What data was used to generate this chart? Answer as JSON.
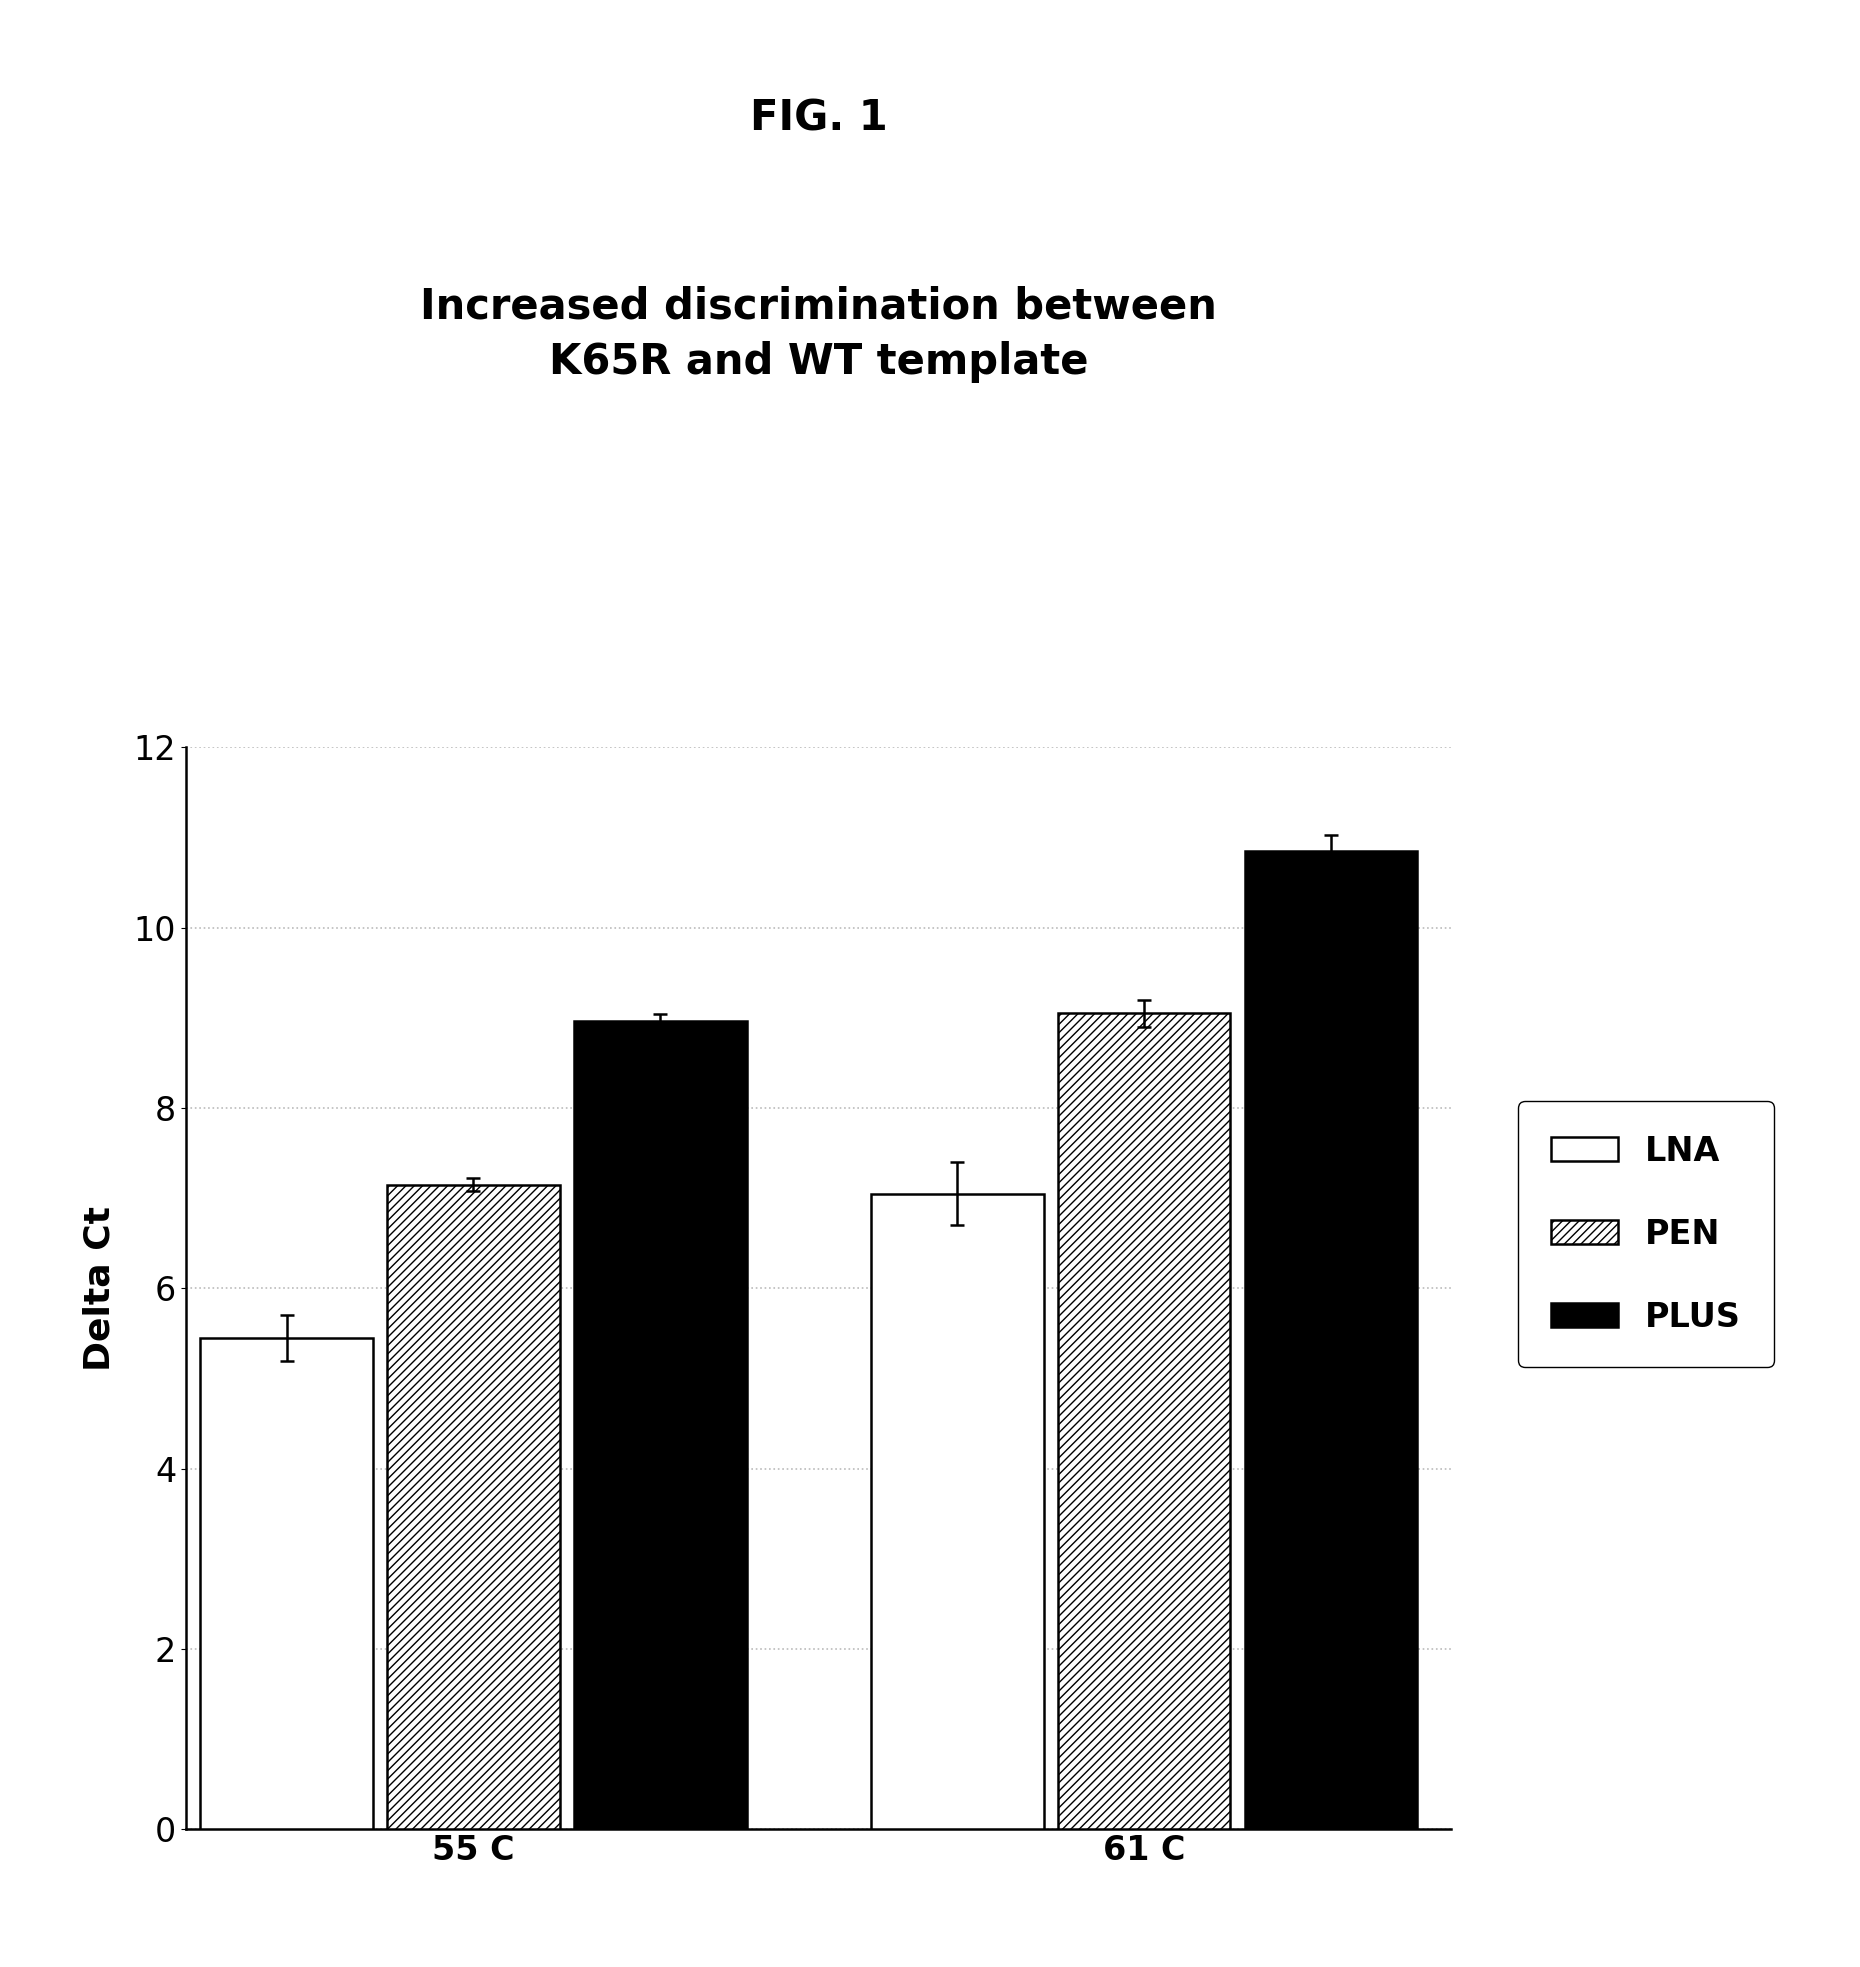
{
  "fig_label": "FIG. 1",
  "title_line1": "Increased discrimination between",
  "title_line2": "K65R and WT template",
  "ylabel": "Delta Ct",
  "categories": [
    "55 C",
    "61 C"
  ],
  "series": [
    "LNA",
    "PEN",
    "PLUS"
  ],
  "values": [
    [
      5.45,
      7.15,
      8.97
    ],
    [
      7.05,
      9.05,
      10.85
    ]
  ],
  "errors": [
    [
      0.25,
      0.07,
      0.07
    ],
    [
      0.35,
      0.15,
      0.18
    ]
  ],
  "bar_colors": [
    "#ffffff",
    "#ffffff",
    "#000000"
  ],
  "bar_hatches": [
    null,
    "////",
    null
  ],
  "bar_edgecolors": [
    "#000000",
    "#000000",
    "#000000"
  ],
  "ylim": [
    0,
    12
  ],
  "yticks": [
    0,
    2,
    4,
    6,
    8,
    10,
    12
  ],
  "background_color": "#ffffff",
  "grid_color": "#bbbbbb",
  "bar_width": 0.18,
  "title_fontsize": 30,
  "fig_label_fontsize": 30,
  "axis_label_fontsize": 26,
  "tick_fontsize": 24,
  "legend_fontsize": 24
}
